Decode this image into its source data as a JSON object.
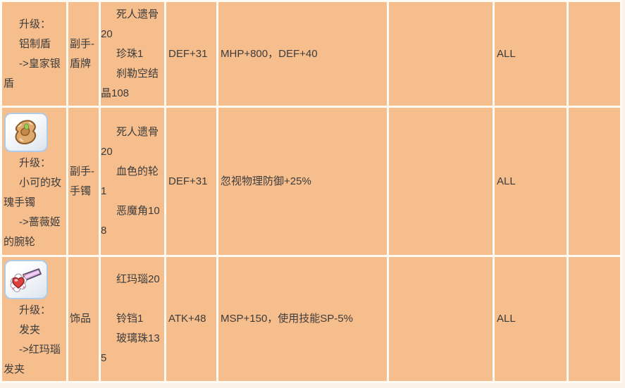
{
  "page": {
    "background_color": "#FBF3EA",
    "cell_color": "#F6BD8D",
    "grid_color": "#FFFAF4",
    "text_color": "#3C3C3C",
    "icon_button_border_color": "#AFCBE7"
  },
  "table": {
    "rows": [
      {
        "icon": null,
        "item_lines": [
          "升级：",
          "铝制盾",
          "->皇家银盾"
        ],
        "slot": "副手-盾牌",
        "materials": [
          "死人遗骨20",
          "珍珠1",
          "刹勒空结晶108"
        ],
        "stat": "DEF+31",
        "effect": "MHP+800，DEF+40",
        "col6": "",
        "target": "ALL",
        "col8": ""
      },
      {
        "icon": "bracelet-item-icon",
        "item_lines": [
          "升级：",
          "小可的玫瑰手镯",
          "->蔷薇姬的腕轮"
        ],
        "slot": "副手-手镯",
        "materials": [
          "死人遗骨20",
          "血色的轮1",
          "恶魔角108"
        ],
        "stat": "DEF+31",
        "effect": "忽视物理防御+25%",
        "col6": "",
        "target": "ALL",
        "col8": ""
      },
      {
        "icon": "hairpin-item-icon",
        "item_lines": [
          "升级：",
          "发夹",
          "->红玛瑙发夹"
        ],
        "slot": "饰品",
        "materials": [
          "红玛瑙20",
          "",
          "铃铛1",
          "玻璃珠135"
        ],
        "stat": "ATK+48",
        "effect": "MSP+150，使用技能SP-5%",
        "col6": "",
        "target": "ALL",
        "col8": ""
      }
    ]
  }
}
